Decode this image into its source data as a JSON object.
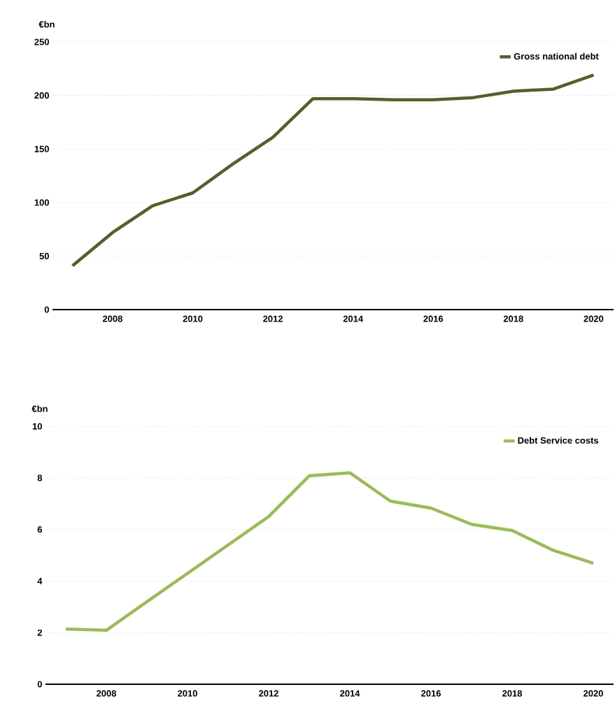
{
  "chart_data": [
    {
      "type": "line",
      "ylabel": "€bn",
      "x": [
        2007,
        2008,
        2009,
        2010,
        2011,
        2012,
        2013,
        2014,
        2015,
        2016,
        2017,
        2018,
        2019,
        2020
      ],
      "series": [
        {
          "name": "Gross national debt",
          "color": "#4f6228",
          "values": [
            41,
            72,
            97,
            109,
            136,
            161,
            197,
            197,
            196,
            196,
            198,
            204,
            206,
            219
          ]
        }
      ],
      "xlim": [
        2006.5,
        2020.5
      ],
      "ylim": [
        0,
        250
      ],
      "xticks": [
        2008,
        2010,
        2012,
        2014,
        2016,
        2018,
        2020
      ],
      "yticks": [
        0,
        50,
        100,
        150,
        200,
        250
      ],
      "grid": "y",
      "legend": "top right"
    },
    {
      "type": "line",
      "ylabel": "€bn",
      "x": [
        2007,
        2008,
        2009,
        2010,
        2011,
        2012,
        2013,
        2014,
        2015,
        2016,
        2017,
        2018,
        2019,
        2020
      ],
      "series": [
        {
          "name": "Debt Service costs",
          "color": "#9bbb59",
          "values": [
            2.14,
            2.09,
            3.2,
            4.3,
            5.4,
            6.5,
            8.08,
            8.2,
            7.1,
            6.83,
            6.2,
            5.96,
            5.2,
            4.69
          ]
        }
      ],
      "xlim": [
        2006.5,
        2020.5
      ],
      "ylim": [
        0,
        10
      ],
      "xticks": [
        2008,
        2010,
        2012,
        2014,
        2016,
        2018,
        2020
      ],
      "yticks": [
        0,
        2,
        4,
        6,
        8,
        10
      ],
      "grid": "y",
      "legend": "top right"
    }
  ]
}
